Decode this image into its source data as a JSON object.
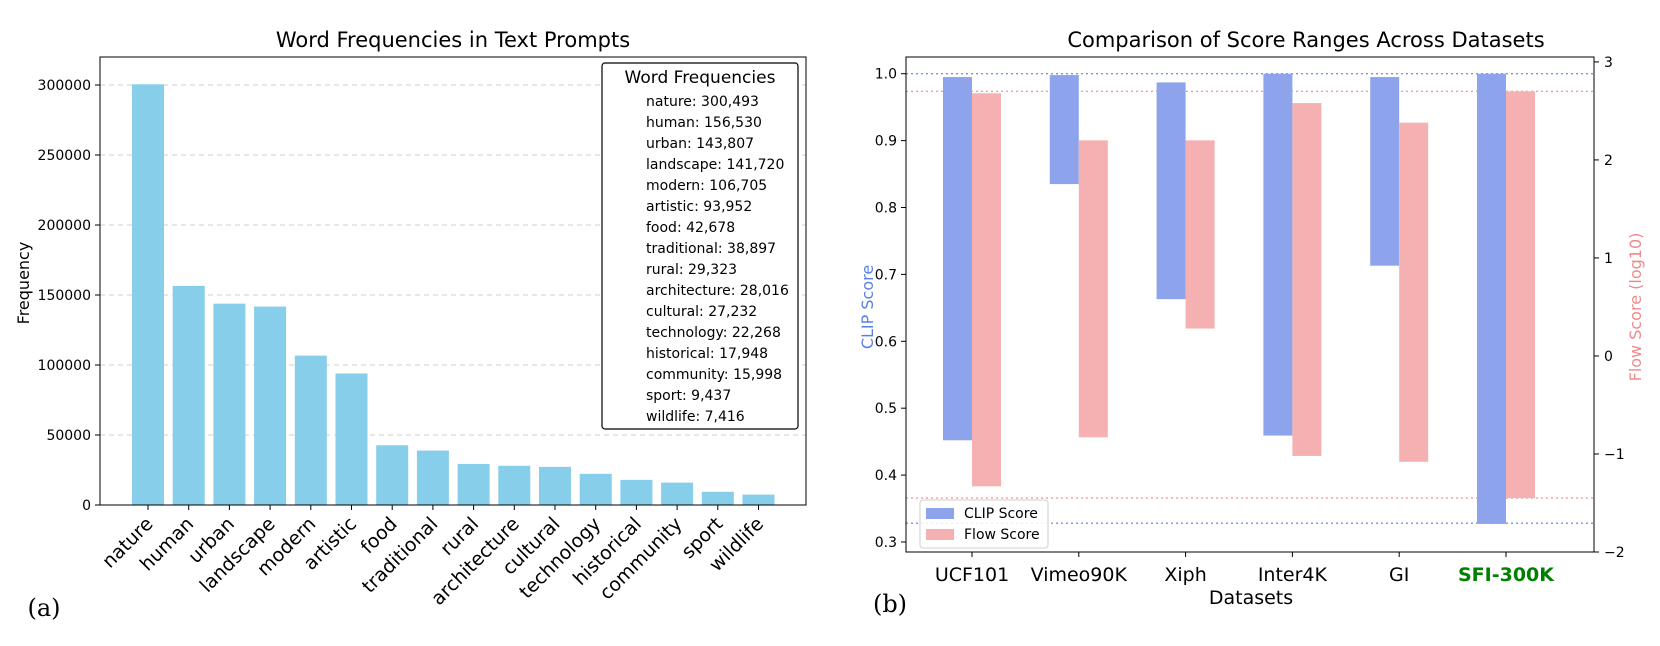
{
  "chart_data": [
    {
      "type": "bar",
      "panel_label": "(a)",
      "title": "Word Frequencies in Text Prompts",
      "xlabel": "",
      "ylabel": "Frequency",
      "ylim": [
        0,
        320000
      ],
      "yticks": [
        0,
        50000,
        100000,
        150000,
        200000,
        250000,
        300000
      ],
      "ytick_labels": [
        "0",
        "50000",
        "100000",
        "150000",
        "200000",
        "250000",
        "300000"
      ],
      "grid": "horizontal dashed",
      "bar_color": "#87ceeb",
      "categories": [
        "nature",
        "human",
        "urban",
        "landscape",
        "modern",
        "artistic",
        "food",
        "traditional",
        "rural",
        "architecture",
        "cultural",
        "technology",
        "historical",
        "community",
        "sport",
        "wildlife"
      ],
      "values": [
        300493,
        156530,
        143807,
        141720,
        106705,
        93952,
        42678,
        38897,
        29323,
        28016,
        27232,
        22268,
        17948,
        15998,
        9437,
        7416
      ],
      "legend_box": {
        "title": "Word Frequencies",
        "placement": "top-right",
        "entries": [
          "nature: 300,493",
          "human: 156,530",
          "urban: 143,807",
          "landscape: 141,720",
          "modern: 106,705",
          "artistic: 93,952",
          "food: 42,678",
          "traditional: 38,897",
          "rural: 29,323",
          "architecture: 28,016",
          "cultural: 27,232",
          "technology: 22,268",
          "historical: 17,948",
          "community: 15,998",
          "sport: 9,437",
          "wildlife: 7,416"
        ]
      }
    },
    {
      "type": "bar",
      "subtype": "floating range bars, dual y-axis",
      "panel_label": "(b)",
      "title": "Comparison of Score Ranges Across Datasets",
      "xlabel": "Datasets",
      "ylabel_left": "CLIP Score",
      "ylabel_right": "Flow Score (log10)",
      "ylim_left": [
        0.285,
        1.025
      ],
      "ylim_right": [
        -2.0,
        3.05
      ],
      "yticks_left": [
        0.3,
        0.4,
        0.5,
        0.6,
        0.7,
        0.8,
        0.9,
        1.0
      ],
      "ytick_labels_left": [
        "0.3",
        "0.4",
        "0.5",
        "0.6",
        "0.7",
        "0.8",
        "0.9",
        "1.0"
      ],
      "yticks_right": [
        -2,
        -1,
        0,
        1,
        2,
        3
      ],
      "ytick_labels_right": [
        "−2",
        "−1",
        "0",
        "1",
        "2",
        "3"
      ],
      "categories": [
        "UCF101",
        "Vimeo90K",
        "Xiph",
        "Inter4K",
        "GI",
        "SFI-300K"
      ],
      "highlight_category": "SFI-300K",
      "highlight_color": "#008000",
      "series": [
        {
          "name": "CLIP Score",
          "axis": "left",
          "color": "#8da4ec",
          "label_color": "#5b7fe6",
          "min": [
            0.452,
            0.835,
            0.663,
            0.459,
            0.713,
            0.327
          ],
          "max": [
            0.995,
            0.998,
            0.987,
            1.0,
            0.995,
            1.0
          ]
        },
        {
          "name": "Flow Score",
          "axis": "right",
          "color": "#f5b1b1",
          "label_color": "#f08a8a",
          "min": [
            -1.33,
            -0.83,
            0.28,
            -1.02,
            -1.08,
            -1.45
          ],
          "max": [
            2.68,
            2.2,
            2.2,
            2.58,
            2.38,
            2.7
          ]
        }
      ],
      "reference_lines": [
        {
          "axis": "left",
          "value": 1.0,
          "color": "#5b7fe6",
          "style": "dotted"
        },
        {
          "axis": "left",
          "value": 0.328,
          "color": "#5b7fe6",
          "style": "dotted"
        },
        {
          "axis": "right",
          "value": 2.7,
          "color": "#f08a8a",
          "style": "dotted"
        },
        {
          "axis": "right",
          "value": -1.45,
          "color": "#f08a8a",
          "style": "dotted"
        }
      ],
      "legend": {
        "placement": "bottom-left",
        "entries": [
          "CLIP Score",
          "Flow Score"
        ]
      }
    }
  ]
}
